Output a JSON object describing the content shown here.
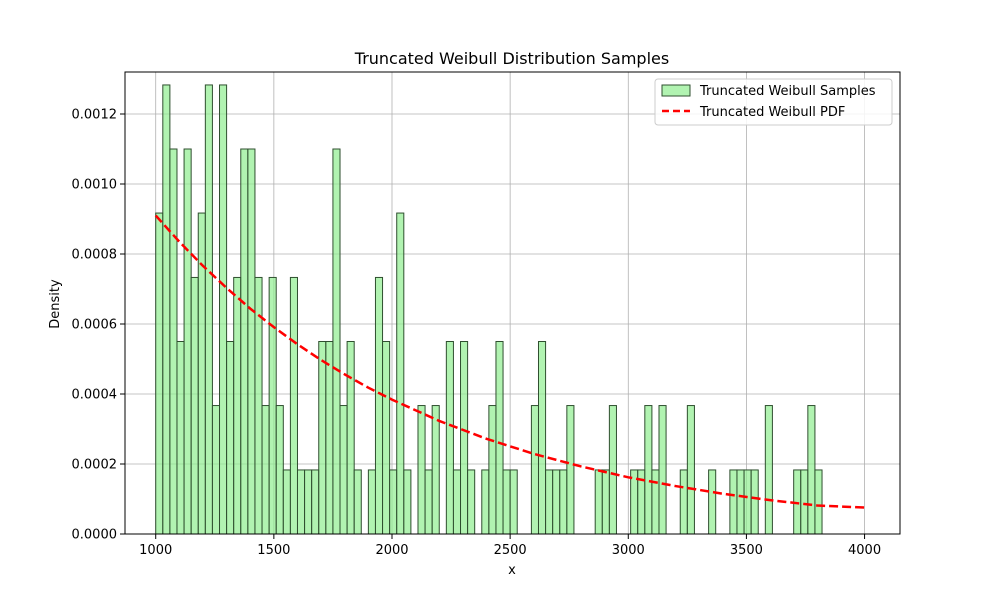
{
  "chart_data": {
    "type": "histogram",
    "title": "Truncated Weibull Distribution Samples",
    "xlabel": "x",
    "ylabel": "Density",
    "xlim": [
      870,
      4150
    ],
    "ylim": [
      0,
      0.00132
    ],
    "xticks": [
      1000,
      1500,
      2000,
      2500,
      3000,
      3500,
      4000
    ],
    "yticks": [
      0.0,
      0.0002,
      0.0004,
      0.0006,
      0.0008,
      0.001,
      0.0012
    ],
    "ytick_labels": [
      "0.0000",
      "0.0002",
      "0.0004",
      "0.0006",
      "0.0008",
      "0.0010",
      "0.0012"
    ],
    "grid": true,
    "legend_position": "top-right",
    "bin_start": 1000,
    "bin_width": 30,
    "series": [
      {
        "name": "Truncated Weibull Samples",
        "kind": "bars",
        "color": "#90ee90",
        "edge_color": "#2f4f2f",
        "values": [
          0.000917,
          0.001283,
          0.0011,
          0.00055,
          0.0011,
          0.000733,
          0.000917,
          0.001283,
          0.000367,
          0.001283,
          0.00055,
          0.000733,
          0.0011,
          0.0011,
          0.000733,
          0.000367,
          0.000733,
          0.000367,
          0.000183,
          0.000733,
          0.000183,
          0.000183,
          0.000183,
          0.00055,
          0.00055,
          0.0011,
          0.000367,
          0.00055,
          0.000183,
          0.0,
          0.000183,
          0.000733,
          0.00055,
          0.000183,
          0.000917,
          0.000183,
          0.0,
          0.000367,
          0.000183,
          0.000367,
          0.0,
          0.00055,
          0.000183,
          0.00055,
          0.000183,
          0.0,
          0.000183,
          0.000367,
          0.00055,
          0.000183,
          0.000183,
          0.0,
          0.0,
          0.000367,
          0.00055,
          0.000183,
          0.000183,
          0.000183,
          0.000367,
          0.0,
          0.0,
          0.0,
          0.000183,
          0.000183,
          0.000367,
          0.0,
          0.0,
          0.000183,
          0.000183,
          0.000367,
          0.000183,
          0.000367,
          0.0,
          0.0,
          0.000183,
          0.000367,
          0.0,
          0.0,
          0.000183,
          0.0,
          0.0,
          0.000183,
          0.000183,
          0.000183,
          0.000183,
          0.0,
          0.000367,
          0.0,
          0.0,
          0.0,
          0.000183,
          0.000183,
          0.000367,
          0.000183,
          0.0,
          0.0,
          0.0,
          0.0,
          0.0,
          0.0,
          0.0,
          0.0,
          0.0,
          0.0,
          0.0,
          0.0,
          0.0,
          0.0,
          0.0,
          0.0,
          0.0,
          0.0,
          0.0,
          0.0,
          0.0,
          0.0,
          0.0,
          0.0,
          0.0,
          0.0
        ]
      },
      {
        "name": "Truncated Weibull PDF",
        "kind": "line",
        "color": "#ff0000",
        "dashed": true,
        "x": [
          1000,
          1100,
          1200,
          1300,
          1400,
          1500,
          1600,
          1700,
          1800,
          1900,
          2000,
          2200,
          2400,
          2600,
          2800,
          3000,
          3200,
          3400,
          3600,
          3800,
          4000
        ],
        "values": [
          0.00091,
          0.000835,
          0.000766,
          0.000703,
          0.000644,
          0.000591,
          0.000542,
          0.000497,
          0.000456,
          0.000418,
          0.000384,
          0.000323,
          0.000272,
          0.000229,
          0.000193,
          0.000162,
          0.000137,
          0.000115,
          9.68e-05,
          8.15e-05,
          7.55e-05
        ]
      }
    ]
  }
}
